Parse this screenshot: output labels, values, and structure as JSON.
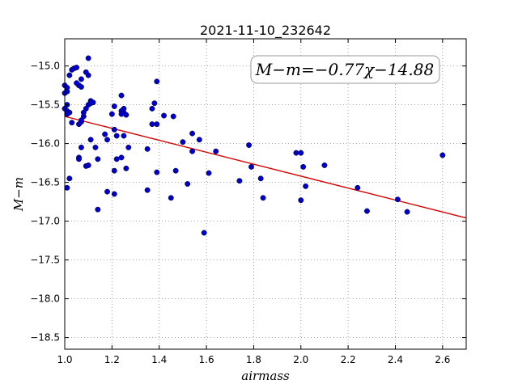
{
  "chart_data": {
    "type": "scatter",
    "title": "2021-11-10_232642",
    "xlabel": "airmass",
    "ylabel": "M−m",
    "xlim": [
      1.0,
      2.7
    ],
    "ylim": [
      -18.65,
      -14.65
    ],
    "y_inverted": true,
    "grid": true,
    "x_ticks": [
      1.0,
      1.2,
      1.4,
      1.6,
      1.8,
      2.0,
      2.2,
      2.4,
      2.6
    ],
    "x_tick_labels": [
      "1.0",
      "1.2",
      "1.4",
      "1.6",
      "1.8",
      "2.0",
      "2.2",
      "2.4",
      "2.6"
    ],
    "y_ticks": [
      -15.0,
      -15.5,
      -16.0,
      -16.5,
      -17.0,
      -17.5,
      -18.0,
      -18.5
    ],
    "y_tick_labels": [
      "−15.0",
      "−15.5",
      "−16.0",
      "−16.5",
      "−17.0",
      "−17.5",
      "−18.0",
      "−18.5"
    ],
    "annotation": "M−m=−0.77χ−14.88",
    "marker_color": "#0000cc",
    "fit_color": "#dd0000",
    "fit": {
      "slope": -0.77,
      "intercept": -14.88
    },
    "series": [
      {
        "x": [
          1.0,
          1.01,
          1.0,
          1.01,
          1.02,
          1.01,
          1.0,
          1.01,
          1.02,
          1.01,
          1.03,
          1.04,
          1.05,
          1.06,
          1.07,
          1.03,
          1.06,
          1.07,
          1.06,
          1.05,
          1.07,
          1.08,
          1.07,
          1.06,
          1.06,
          1.07,
          1.08,
          1.09,
          1.1,
          1.11,
          1.11,
          1.12,
          1.1,
          1.09,
          1.1,
          1.11,
          1.13,
          1.14,
          1.09,
          1.1,
          1.02,
          1.01,
          1.17,
          1.18,
          1.2,
          1.21,
          1.21,
          1.22,
          1.24,
          1.25,
          1.24,
          1.25,
          1.26,
          1.25,
          1.24,
          1.22,
          1.21,
          1.24,
          1.27,
          1.26,
          1.18,
          1.21,
          1.14,
          1.35,
          1.37,
          1.38,
          1.39,
          1.37,
          1.39,
          1.42,
          1.46,
          1.5,
          1.47,
          1.45,
          1.35,
          1.39,
          1.52,
          1.54,
          1.57,
          1.54,
          1.61,
          1.64,
          1.59,
          1.74,
          1.78,
          1.79,
          1.83,
          1.84,
          1.98,
          2.01,
          2.0,
          2.02,
          2.0,
          2.1,
          2.24,
          2.28,
          2.41,
          2.45,
          2.6
        ],
        "y": [
          -15.25,
          -15.28,
          -15.35,
          -15.33,
          -15.12,
          -15.5,
          -15.55,
          -15.58,
          -15.6,
          -15.62,
          -15.05,
          -15.03,
          -15.02,
          -15.25,
          -15.17,
          -15.73,
          -15.75,
          -15.72,
          -15.25,
          -15.22,
          -15.27,
          -15.65,
          -15.7,
          -16.18,
          -16.2,
          -16.05,
          -15.6,
          -15.55,
          -15.5,
          -15.45,
          -15.48,
          -15.47,
          -14.9,
          -15.08,
          -15.12,
          -15.95,
          -16.05,
          -16.2,
          -16.29,
          -16.28,
          -16.45,
          -16.57,
          -15.88,
          -15.95,
          -15.62,
          -15.52,
          -15.82,
          -15.9,
          -15.38,
          -15.55,
          -15.58,
          -15.6,
          -15.63,
          -15.9,
          -16.18,
          -16.2,
          -16.35,
          -15.62,
          -16.05,
          -16.32,
          -16.62,
          -16.65,
          -16.85,
          -16.07,
          -15.55,
          -15.48,
          -15.2,
          -15.75,
          -16.37,
          -15.64,
          -15.65,
          -15.98,
          -16.35,
          -16.7,
          -16.6,
          -15.75,
          -16.52,
          -16.1,
          -15.95,
          -15.87,
          -16.38,
          -16.1,
          -17.15,
          -16.48,
          -16.02,
          -16.3,
          -16.45,
          -16.7,
          -16.12,
          -16.3,
          -16.73,
          -16.55,
          -16.12,
          -16.28,
          -16.57,
          -16.87,
          -16.72,
          -16.88,
          -16.15
        ]
      }
    ]
  }
}
